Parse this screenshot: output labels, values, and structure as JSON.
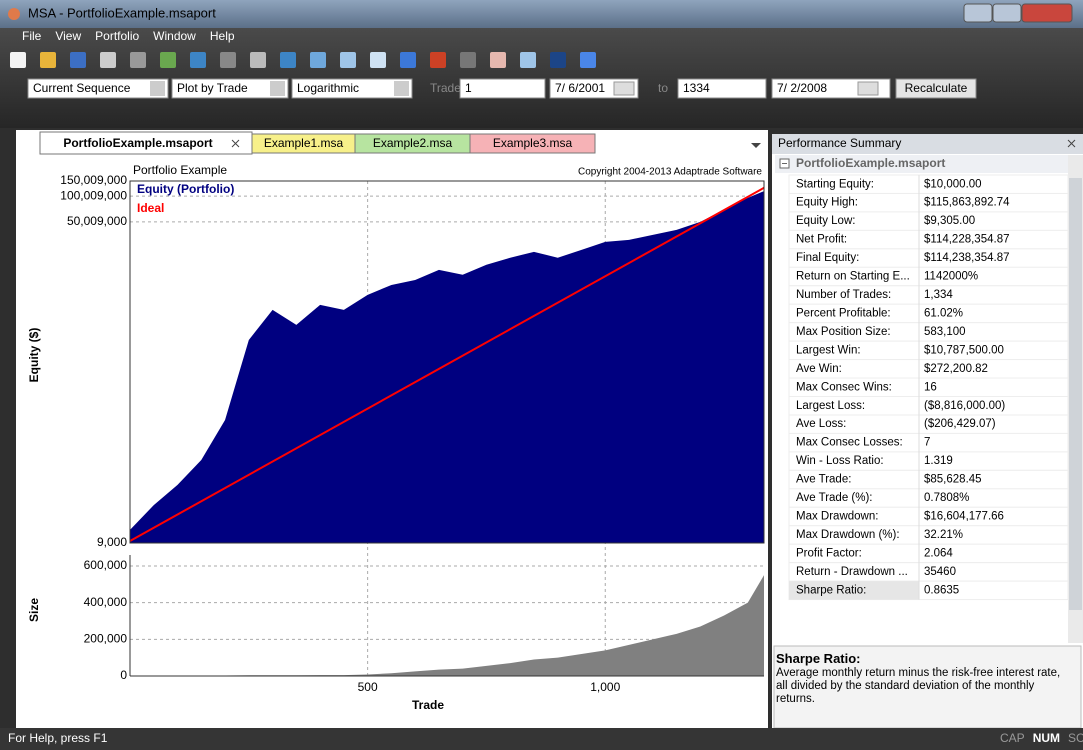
{
  "window": {
    "title": "MSA - PortfolioExample.msaport"
  },
  "menu": [
    "File",
    "View",
    "Portfolio",
    "Window",
    "Help"
  ],
  "toolbar": {
    "sequence": "Current Sequence",
    "plot_by": "Plot by Trade",
    "scale": "Logarithmic",
    "trades_label": "Trades:",
    "trades_value": "1",
    "start_date": "7/ 6/2001",
    "to_label": "to",
    "end_trade": "1334",
    "end_date": "7/ 2/2008",
    "recalculate": "Recalculate"
  },
  "tabs": [
    "PortfolioExample.msaport",
    "Example1.msa",
    "Example2.msa",
    "Example3.msa"
  ],
  "chart_data": {
    "type": "area",
    "title": "Portfolio Example",
    "copyright": "Copyright 2004-2013 Adaptrade Software",
    "x_label": "Trade",
    "y_label": "Equity ($)",
    "log_y": true,
    "grid": true,
    "xlim": [
      0,
      1334
    ],
    "xticks": [
      500,
      {
        "value": 1000,
        "label": "1,000"
      }
    ],
    "ylim": [
      9000,
      150009000
    ],
    "yticks": [
      {
        "value": 9000,
        "label": "9,000"
      },
      {
        "value": 50009000,
        "label": "50,009,000"
      },
      {
        "value": 100009000,
        "label": "100,009,000"
      },
      {
        "value": 150009000,
        "label": "150,009,000"
      }
    ],
    "x": [
      0,
      50,
      100,
      150,
      200,
      250,
      300,
      350,
      400,
      450,
      500,
      550,
      600,
      650,
      700,
      750,
      800,
      850,
      900,
      950,
      1000,
      1050,
      1100,
      1150,
      1200,
      1250,
      1300,
      1334
    ],
    "series": [
      {
        "name": "Equity (Portfolio)",
        "color": "#000080",
        "values": [
          12800,
          24900,
          42800,
          83600,
          245000,
          2100000,
          4710000,
          3150000,
          5380000,
          4710000,
          7050000,
          9200000,
          10500000,
          13800000,
          12100000,
          15800000,
          19100000,
          22400000,
          19100000,
          23600000,
          29300000,
          30900000,
          35300000,
          40400000,
          50100000,
          69200000,
          95500000,
          114238354
        ]
      },
      {
        "name": "Ideal",
        "color": "#ff0000",
        "x": [
          0,
          1334
        ],
        "values": [
          9500,
          125000000
        ]
      }
    ],
    "size_chart": {
      "y_label": "Size",
      "color": "#808080",
      "ylim": [
        0,
        660000
      ],
      "yticks": [
        0,
        {
          "value": 200000,
          "label": "200,000"
        },
        {
          "value": 400000,
          "label": "400,000"
        },
        {
          "value": 600000,
          "label": "600,000"
        }
      ],
      "values": [
        1000,
        1000,
        1500,
        2000,
        3000,
        4000,
        4000,
        4000,
        5000,
        5000,
        8000,
        15000,
        25000,
        35000,
        40000,
        55000,
        70000,
        90000,
        100000,
        120000,
        140000,
        170000,
        200000,
        230000,
        270000,
        330000,
        400000,
        550000
      ]
    }
  },
  "summary": {
    "title": "Performance Summary",
    "group": "PortfolioExample.msaport",
    "rows": [
      [
        "Starting Equity:",
        "$10,000.00"
      ],
      [
        "Equity High:",
        "$115,863,892.74"
      ],
      [
        "Equity Low:",
        "$9,305.00"
      ],
      [
        "Net Profit:",
        "$114,228,354.87"
      ],
      [
        "Final Equity:",
        "$114,238,354.87"
      ],
      [
        "Return on Starting E...",
        "1142000%"
      ],
      [
        "Number of Trades:",
        "1,334"
      ],
      [
        "Percent Profitable:",
        "61.02%"
      ],
      [
        "Max Position Size:",
        "583,100"
      ],
      [
        "Largest Win:",
        "$10,787,500.00"
      ],
      [
        "Ave Win:",
        "$272,200.82"
      ],
      [
        "Max Consec Wins:",
        "16"
      ],
      [
        "Largest Loss:",
        "($8,816,000.00)"
      ],
      [
        "Ave Loss:",
        "($206,429.07)"
      ],
      [
        "Max Consec Losses:",
        "7"
      ],
      [
        "Win - Loss Ratio:",
        "1.319"
      ],
      [
        "Ave Trade:",
        "$85,628.45"
      ],
      [
        "Ave Trade (%):",
        "0.7808%"
      ],
      [
        "Max Drawdown:",
        "$16,604,177.66"
      ],
      [
        "Max Drawdown (%):",
        "32.21%"
      ],
      [
        "Profit Factor:",
        "2.064"
      ],
      [
        "Return - Drawdown ...",
        "35460"
      ],
      [
        "Sharpe Ratio:",
        "0.8635"
      ]
    ]
  },
  "description": {
    "title": "Sharpe Ratio:",
    "text": "Average monthly return minus the risk-free interest rate, all divided by the standard deviation of the monthly returns."
  },
  "status": {
    "help": "For Help, press F1",
    "indicators": [
      "CAP",
      "NUM",
      "SCRL"
    ]
  }
}
